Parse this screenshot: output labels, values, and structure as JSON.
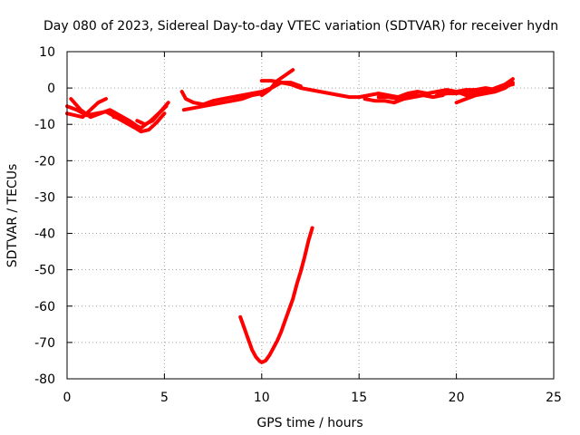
{
  "chart_data": {
    "type": "scatter",
    "title": "Day 080 of 2023, Sidereal Day-to-day VTEC variation (SDTVAR) for receiver hydn",
    "xlabel": "GPS time / hours",
    "ylabel": "SDTVAR / TECUs",
    "xlim": [
      0,
      25
    ],
    "ylim": [
      -80,
      10
    ],
    "x_ticks": [
      0,
      5,
      10,
      15,
      20,
      25
    ],
    "y_ticks": [
      10,
      0,
      -10,
      -20,
      -30,
      -40,
      -50,
      -60,
      -70,
      -80
    ],
    "x_tick_labels": [
      "0",
      "5",
      "10",
      "15",
      "20",
      "25"
    ],
    "y_tick_labels": [
      "10",
      "0",
      "-10",
      "-20",
      "-30",
      "-40",
      "-50",
      "-60",
      "-70",
      "-80"
    ],
    "grid": true,
    "color": "#ff0000",
    "series": [
      {
        "name": "arc-a",
        "points": [
          [
            0,
            -5
          ],
          [
            0.5,
            -6
          ],
          [
            1.0,
            -7.5
          ],
          [
            1.5,
            -7
          ],
          [
            2.0,
            -6.5
          ],
          [
            2.5,
            -8
          ],
          [
            3.0,
            -9.5
          ],
          [
            3.5,
            -11
          ],
          [
            3.8,
            -12
          ],
          [
            4.2,
            -11.5
          ],
          [
            4.6,
            -9.5
          ],
          [
            5.0,
            -7
          ]
        ]
      },
      {
        "name": "arc-b",
        "points": [
          [
            0.2,
            -3
          ],
          [
            0.7,
            -6
          ],
          [
            1.2,
            -8
          ],
          [
            1.7,
            -7
          ],
          [
            2.2,
            -6
          ],
          [
            2.7,
            -7.5
          ],
          [
            3.2,
            -9
          ],
          [
            3.6,
            -10.5
          ]
        ]
      },
      {
        "name": "arc-c",
        "points": [
          [
            0,
            -7
          ],
          [
            0.4,
            -7.5
          ],
          [
            0.8,
            -8
          ],
          [
            1.2,
            -6
          ],
          [
            1.6,
            -4
          ],
          [
            2.0,
            -3
          ]
        ]
      },
      {
        "name": "arc-d",
        "points": [
          [
            2.4,
            -8
          ],
          [
            2.9,
            -8.5
          ],
          [
            3.4,
            -10
          ],
          [
            3.8,
            -11
          ],
          [
            4.3,
            -9
          ],
          [
            4.7,
            -7
          ],
          [
            5.1,
            -5
          ]
        ]
      },
      {
        "name": "arc-e",
        "points": [
          [
            3.6,
            -9
          ],
          [
            4.0,
            -10
          ],
          [
            4.4,
            -9
          ],
          [
            4.8,
            -6.5
          ],
          [
            5.2,
            -4
          ]
        ]
      },
      {
        "name": "arc-f",
        "points": [
          [
            5.9,
            -1
          ],
          [
            6.1,
            -3
          ],
          [
            6.5,
            -4
          ],
          [
            7.0,
            -4.5
          ],
          [
            7.5,
            -3.5
          ],
          [
            8.0,
            -3
          ],
          [
            8.5,
            -2.5
          ],
          [
            9.0,
            -2
          ],
          [
            9.5,
            -1.5
          ]
        ]
      },
      {
        "name": "arc-g",
        "points": [
          [
            6.0,
            -6
          ],
          [
            6.5,
            -5.5
          ],
          [
            7.0,
            -5
          ],
          [
            7.5,
            -4.5
          ],
          [
            8.0,
            -4
          ],
          [
            8.5,
            -3.5
          ],
          [
            9.0,
            -3
          ],
          [
            9.5,
            -2
          ],
          [
            10.0,
            -1.5
          ]
        ]
      },
      {
        "name": "arc-h",
        "points": [
          [
            9.5,
            -1.5
          ],
          [
            10.0,
            -1
          ],
          [
            10.5,
            0
          ],
          [
            11.0,
            1.5
          ],
          [
            11.5,
            1
          ],
          [
            12.0,
            0
          ],
          [
            12.5,
            -0.5
          ],
          [
            13.0,
            -1
          ],
          [
            13.5,
            -1.5
          ],
          [
            14.0,
            -2
          ],
          [
            14.5,
            -2.5
          ],
          [
            15.0,
            -2.5
          ]
        ]
      },
      {
        "name": "arc-i",
        "points": [
          [
            10.0,
            -2
          ],
          [
            10.4,
            -0.5
          ],
          [
            10.8,
            2
          ],
          [
            11.2,
            3.5
          ],
          [
            11.6,
            5
          ]
        ]
      },
      {
        "name": "arc-j",
        "points": [
          [
            10.0,
            2
          ],
          [
            10.5,
            2
          ],
          [
            11.0,
            1.5
          ],
          [
            11.5,
            1.5
          ],
          [
            12.0,
            0.5
          ]
        ]
      },
      {
        "name": "arc-k",
        "points": [
          [
            15.0,
            -2.5
          ],
          [
            15.5,
            -2
          ],
          [
            16.0,
            -1.5
          ],
          [
            16.5,
            -2
          ],
          [
            17.0,
            -2.5
          ],
          [
            17.5,
            -1.5
          ],
          [
            18.0,
            -1
          ],
          [
            18.5,
            -1.5
          ],
          [
            19.0,
            -1
          ],
          [
            19.5,
            -0.5
          ],
          [
            20.0,
            -1
          ],
          [
            20.5,
            -0.5
          ],
          [
            21.0,
            -0.5
          ],
          [
            21.5,
            0
          ],
          [
            22.0,
            -0.5
          ],
          [
            22.5,
            0.5
          ],
          [
            22.9,
            1
          ]
        ]
      },
      {
        "name": "arc-l",
        "points": [
          [
            15.3,
            -3
          ],
          [
            15.8,
            -3.5
          ],
          [
            16.3,
            -3.5
          ],
          [
            16.8,
            -4
          ],
          [
            17.3,
            -3
          ],
          [
            17.8,
            -2.5
          ],
          [
            18.3,
            -2
          ],
          [
            18.8,
            -2.5
          ],
          [
            19.3,
            -2
          ]
        ]
      },
      {
        "name": "arc-m",
        "points": [
          [
            16.0,
            -2.5
          ],
          [
            16.5,
            -2.5
          ],
          [
            17.0,
            -3
          ],
          [
            17.5,
            -2
          ],
          [
            18.0,
            -2
          ]
        ]
      },
      {
        "name": "arc-n",
        "points": [
          [
            19.5,
            -1.5
          ],
          [
            20.0,
            -1
          ],
          [
            20.5,
            -2
          ],
          [
            21.0,
            -1.5
          ],
          [
            21.5,
            -1
          ],
          [
            22.0,
            0
          ],
          [
            22.5,
            1
          ],
          [
            22.9,
            2.5
          ]
        ]
      },
      {
        "name": "arc-o",
        "points": [
          [
            20.0,
            -4
          ],
          [
            20.5,
            -3
          ],
          [
            21.0,
            -2
          ],
          [
            21.5,
            -1.5
          ],
          [
            22.0,
            -1
          ],
          [
            22.5,
            0
          ],
          [
            22.9,
            1.5
          ]
        ]
      },
      {
        "name": "arc-p",
        "points": [
          [
            19.0,
            -2
          ],
          [
            19.5,
            -1.5
          ],
          [
            20.0,
            -1.5
          ],
          [
            20.5,
            -1
          ],
          [
            21.0,
            -0.5
          ]
        ]
      },
      {
        "name": "dip-arc",
        "points": [
          [
            8.9,
            -63
          ],
          [
            9.1,
            -66
          ],
          [
            9.3,
            -69
          ],
          [
            9.5,
            -72
          ],
          [
            9.7,
            -74
          ],
          [
            9.9,
            -75.2
          ],
          [
            10.0,
            -75.5
          ],
          [
            10.2,
            -75
          ],
          [
            10.4,
            -73.5
          ],
          [
            10.6,
            -71.5
          ],
          [
            10.8,
            -69.5
          ],
          [
            11.0,
            -67
          ],
          [
            11.2,
            -64
          ],
          [
            11.4,
            -61
          ],
          [
            11.6,
            -58
          ],
          [
            11.8,
            -54
          ],
          [
            12.0,
            -50.5
          ],
          [
            12.2,
            -46.5
          ],
          [
            12.4,
            -42
          ],
          [
            12.6,
            -38.5
          ]
        ]
      }
    ]
  }
}
